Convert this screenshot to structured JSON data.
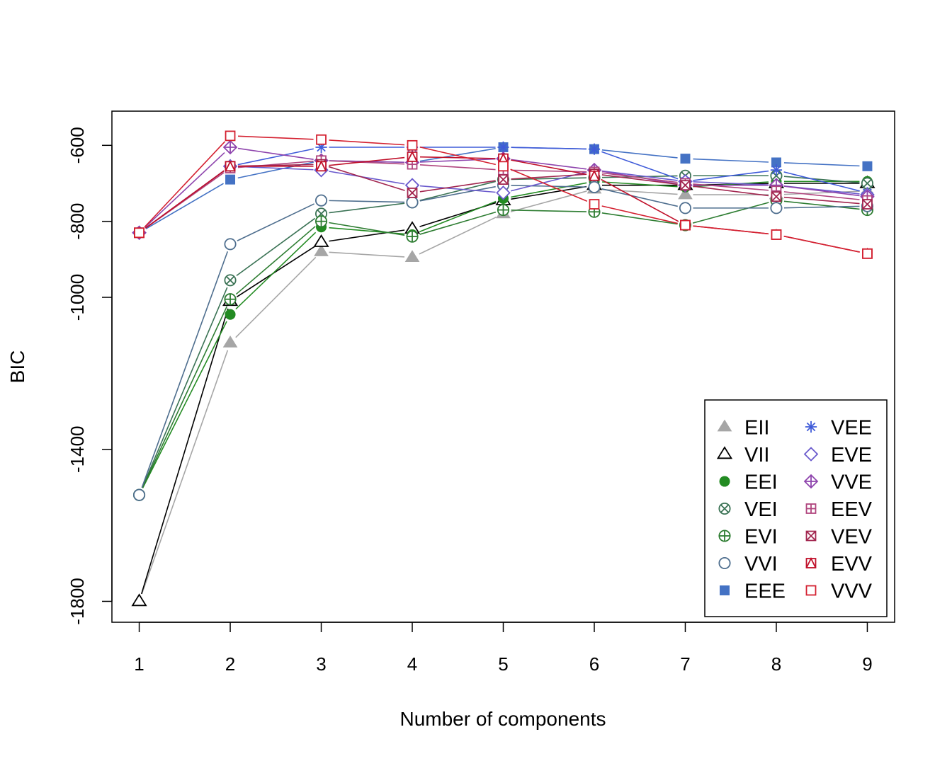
{
  "chart_data": {
    "type": "line",
    "title": "",
    "xlabel": "Number of components",
    "ylabel": "BIC",
    "x": [
      1,
      2,
      3,
      4,
      5,
      6,
      7,
      8,
      9
    ],
    "xlim": [
      0.7,
      9.3
    ],
    "ylim": [
      -1855,
      -510
    ],
    "x_ticks": [
      1,
      2,
      3,
      4,
      5,
      6,
      7,
      8,
      9
    ],
    "y_ticks": [
      -1800,
      -1400,
      -1000,
      -800,
      -600
    ],
    "y_tick_labels": [
      "-1800",
      "-1400",
      "-1000",
      "-800",
      "-600"
    ],
    "grid": false,
    "legend_position": "bottom-right",
    "series": [
      {
        "name": "EII",
        "color": "#A6A6A6",
        "symbol": "triangle-filled",
        "values": [
          -1800,
          -1120,
          -880,
          -895,
          -780,
          -715,
          -730,
          -730,
          -720
        ]
      },
      {
        "name": "VII",
        "color": "#000000",
        "symbol": "triangle-open",
        "values": [
          -1800,
          -1010,
          -855,
          -820,
          -745,
          -705,
          -705,
          -700,
          -700
        ]
      },
      {
        "name": "EEI",
        "color": "#238B22",
        "symbol": "circle-filled",
        "values": [
          -1520,
          -1045,
          -815,
          -835,
          -740,
          -695,
          -710,
          -695,
          -695
        ]
      },
      {
        "name": "VEI",
        "color": "#3B7355",
        "symbol": "circle-x",
        "values": [
          -1520,
          -955,
          -780,
          -750,
          -690,
          -685,
          -680,
          -680,
          -700
        ]
      },
      {
        "name": "EVI",
        "color": "#2E7D32",
        "symbol": "circle-plus",
        "values": [
          -1520,
          -1005,
          -800,
          -840,
          -770,
          -775,
          -810,
          -745,
          -770
        ]
      },
      {
        "name": "VVI",
        "color": "#4E6E8E",
        "symbol": "circle-open",
        "values": [
          -1520,
          -860,
          -745,
          -750,
          -705,
          -710,
          -765,
          -765,
          -760
        ]
      },
      {
        "name": "EEE",
        "color": "#4472C4",
        "symbol": "square-filled",
        "values": [
          -830,
          -690,
          -640,
          -645,
          -605,
          -610,
          -635,
          -645,
          -655
        ]
      },
      {
        "name": "VEE",
        "color": "#3F5BD9",
        "symbol": "asterisk",
        "values": [
          -830,
          -655,
          -605,
          -605,
          -605,
          -610,
          -695,
          -665,
          -725
        ]
      },
      {
        "name": "EVE",
        "color": "#6A5ACD",
        "symbol": "diamond-open",
        "values": [
          -830,
          -655,
          -665,
          -705,
          -725,
          -665,
          -695,
          -705,
          -730
        ]
      },
      {
        "name": "VVE",
        "color": "#8E44AD",
        "symbol": "diamond-plus",
        "values": [
          -830,
          -605,
          -640,
          -645,
          -635,
          -665,
          -705,
          -705,
          -735
        ]
      },
      {
        "name": "EEV",
        "color": "#B0457E",
        "symbol": "square-plus",
        "values": [
          -830,
          -660,
          -640,
          -650,
          -665,
          -670,
          -700,
          -720,
          -745
        ]
      },
      {
        "name": "VEV",
        "color": "#A2264F",
        "symbol": "square-x",
        "values": [
          -830,
          -655,
          -650,
          -725,
          -690,
          -675,
          -705,
          -735,
          -755
        ]
      },
      {
        "name": "EVV",
        "color": "#C0102A",
        "symbol": "square-triangle",
        "values": [
          -830,
          -655,
          -655,
          -630,
          -635,
          -680,
          -810,
          -835,
          -885
        ]
      },
      {
        "name": "VVV",
        "color": "#D42030",
        "symbol": "square-open",
        "values": [
          -830,
          -575,
          -585,
          -600,
          -655,
          -755,
          -810,
          -835,
          -885
        ]
      }
    ]
  }
}
